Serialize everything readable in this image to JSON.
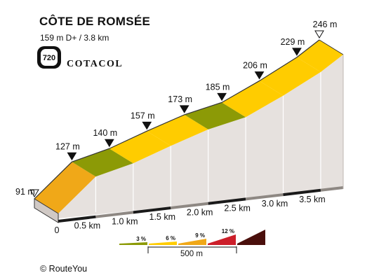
{
  "header": {
    "title": "CÔTE DE ROMSÉE",
    "subtitle": "159 m D+ / 3.8 km"
  },
  "brand": {
    "badge_number": "720",
    "name": "COTACOL"
  },
  "chart_data": {
    "type": "area",
    "title": "CÔTE DE ROMSÉE",
    "subtitle": "159 m D+ / 3.8 km",
    "x_unit": "km",
    "y_unit": "m",
    "points": [
      {
        "km": 0.0,
        "elev": 91,
        "label": "91 m",
        "marker": "start"
      },
      {
        "km": 0.5,
        "elev": 127,
        "label": "127 m",
        "marker": "filled"
      },
      {
        "km": 1.0,
        "elev": 140,
        "label": "140 m",
        "marker": "filled"
      },
      {
        "km": 1.5,
        "elev": 157,
        "label": "157 m",
        "marker": "filled"
      },
      {
        "km": 2.0,
        "elev": 173,
        "label": "173 m",
        "marker": "filled"
      },
      {
        "km": 2.5,
        "elev": 185,
        "label": "185 m",
        "marker": "filled"
      },
      {
        "km": 3.0,
        "elev": 206,
        "label": "206 m",
        "marker": "filled"
      },
      {
        "km": 3.5,
        "elev": 229,
        "label": "229 m",
        "marker": "filled"
      },
      {
        "km": 3.8,
        "elev": 246,
        "label": "246 m",
        "marker": "end"
      }
    ],
    "segments": [
      {
        "from_km": 0.0,
        "to_km": 0.5,
        "gradient_pct": 7.2,
        "color": "#f0a818"
      },
      {
        "from_km": 0.5,
        "to_km": 1.0,
        "gradient_pct": 2.6,
        "color": "#8c9a06"
      },
      {
        "from_km": 1.0,
        "to_km": 1.5,
        "gradient_pct": 3.4,
        "color": "#ffcc00"
      },
      {
        "from_km": 1.5,
        "to_km": 2.0,
        "gradient_pct": 3.2,
        "color": "#ffcc00"
      },
      {
        "from_km": 2.0,
        "to_km": 2.5,
        "gradient_pct": 2.4,
        "color": "#8c9a06"
      },
      {
        "from_km": 2.5,
        "to_km": 3.0,
        "gradient_pct": 4.2,
        "color": "#ffcc00"
      },
      {
        "from_km": 3.0,
        "to_km": 3.5,
        "gradient_pct": 4.6,
        "color": "#ffcc00"
      },
      {
        "from_km": 3.5,
        "to_km": 3.8,
        "gradient_pct": 5.7,
        "color": "#ffcc00"
      }
    ],
    "x_ticks": [
      {
        "km": 0.0,
        "label": "0"
      },
      {
        "km": 0.5,
        "label": "0.5 km"
      },
      {
        "km": 1.0,
        "label": "1.0 km"
      },
      {
        "km": 1.5,
        "label": "1.5 km"
      },
      {
        "km": 2.0,
        "label": "2.0 km"
      },
      {
        "km": 2.5,
        "label": "2.5 km"
      },
      {
        "km": 3.0,
        "label": "3.0 km"
      },
      {
        "km": 3.5,
        "label": "3.5 km"
      }
    ],
    "legend": [
      {
        "label": "3 %",
        "color": "#8c9a06"
      },
      {
        "label": "6 %",
        "color": "#ffcc00"
      },
      {
        "label": "9 %",
        "color": "#f0a818"
      },
      {
        "label": "12 %",
        "color": "#cc1f2a"
      },
      {
        "label": "",
        "color": "#4a0f0c"
      }
    ],
    "scale_label": "500 m",
    "colors": {
      "side_wall": "#e6e1de",
      "side_dark": "#d0c9c5",
      "outline": "#333333",
      "base": "#1a1a1a"
    }
  },
  "footer": {
    "credit": "© RouteYou"
  }
}
